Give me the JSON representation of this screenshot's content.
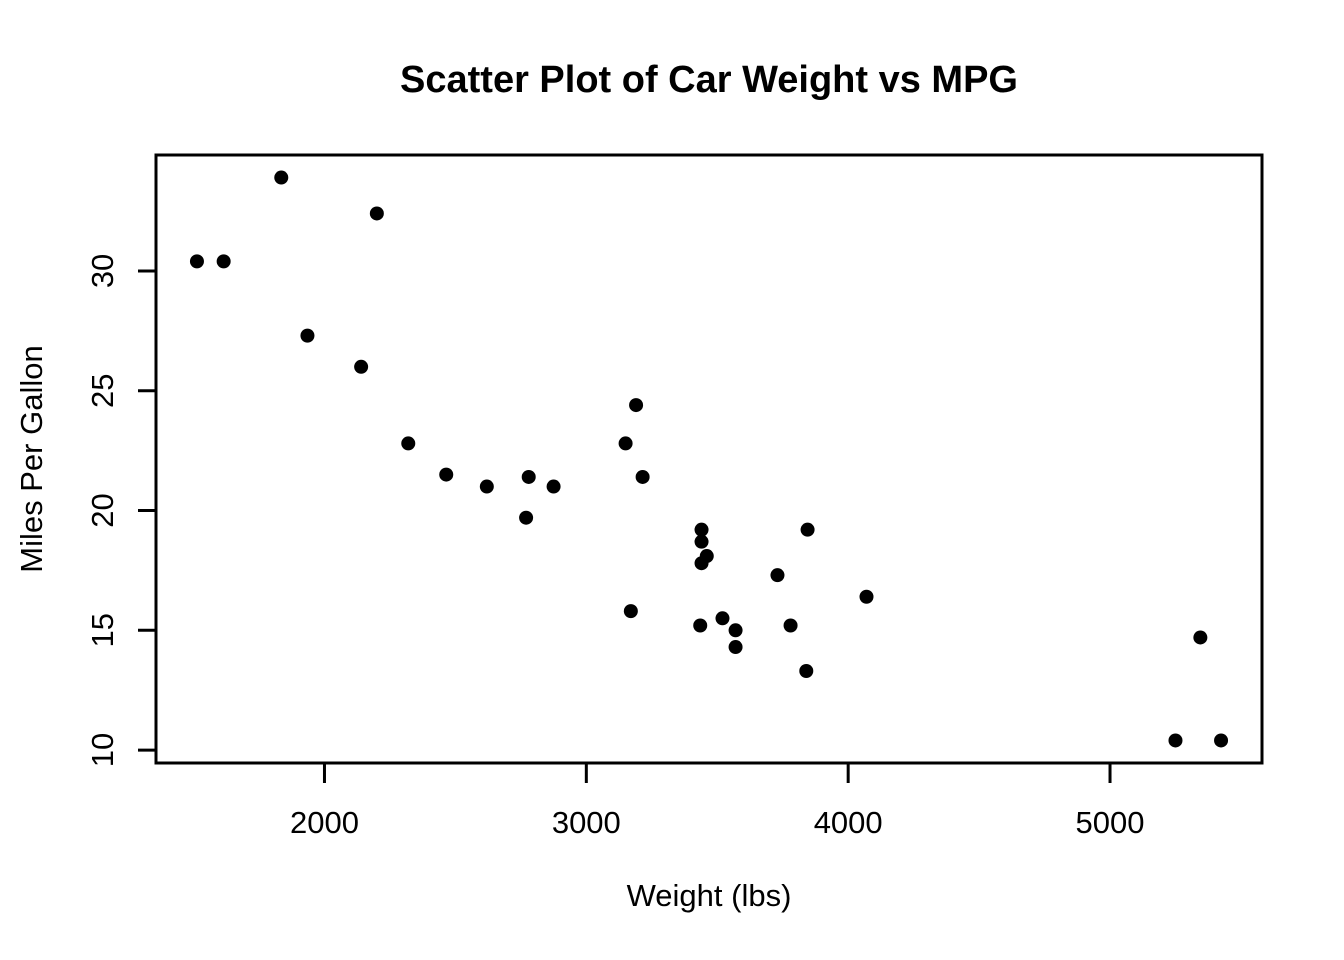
{
  "chart_data": {
    "type": "scatter",
    "title": "Scatter Plot of Car Weight vs MPG",
    "xlabel": "Weight (lbs)",
    "ylabel": "Miles Per Gallon",
    "xlim": [
      1356.6,
      5580.4
    ],
    "ylim": [
      9.46,
      34.84
    ],
    "x_ticks": [
      2000,
      3000,
      4000,
      5000
    ],
    "y_ticks": [
      10,
      15,
      20,
      25,
      30
    ],
    "grid": false,
    "legend": "none",
    "background_color": "#ffffff",
    "axis_color": "#000000",
    "point_style": {
      "shape": "filled-circle",
      "color": "#000000",
      "radius_px": 7
    },
    "points": [
      {
        "x": 2620,
        "y": 21.0
      },
      {
        "x": 2875,
        "y": 21.0
      },
      {
        "x": 2320,
        "y": 22.8
      },
      {
        "x": 3215,
        "y": 21.4
      },
      {
        "x": 3440,
        "y": 18.7
      },
      {
        "x": 3460,
        "y": 18.1
      },
      {
        "x": 3570,
        "y": 14.3
      },
      {
        "x": 3190,
        "y": 24.4
      },
      {
        "x": 3150,
        "y": 22.8
      },
      {
        "x": 3440,
        "y": 19.2
      },
      {
        "x": 3440,
        "y": 17.8
      },
      {
        "x": 4070,
        "y": 16.4
      },
      {
        "x": 3730,
        "y": 17.3
      },
      {
        "x": 3780,
        "y": 15.2
      },
      {
        "x": 5250,
        "y": 10.4
      },
      {
        "x": 5424,
        "y": 10.4
      },
      {
        "x": 5345,
        "y": 14.7
      },
      {
        "x": 2200,
        "y": 32.4
      },
      {
        "x": 1615,
        "y": 30.4
      },
      {
        "x": 1835,
        "y": 33.9
      },
      {
        "x": 2465,
        "y": 21.5
      },
      {
        "x": 3520,
        "y": 15.5
      },
      {
        "x": 3435,
        "y": 15.2
      },
      {
        "x": 3840,
        "y": 13.3
      },
      {
        "x": 3845,
        "y": 19.2
      },
      {
        "x": 1935,
        "y": 27.3
      },
      {
        "x": 2140,
        "y": 26.0
      },
      {
        "x": 1513,
        "y": 30.4
      },
      {
        "x": 3170,
        "y": 15.8
      },
      {
        "x": 2770,
        "y": 19.7
      },
      {
        "x": 3570,
        "y": 15.0
      },
      {
        "x": 2780,
        "y": 21.4
      }
    ]
  }
}
